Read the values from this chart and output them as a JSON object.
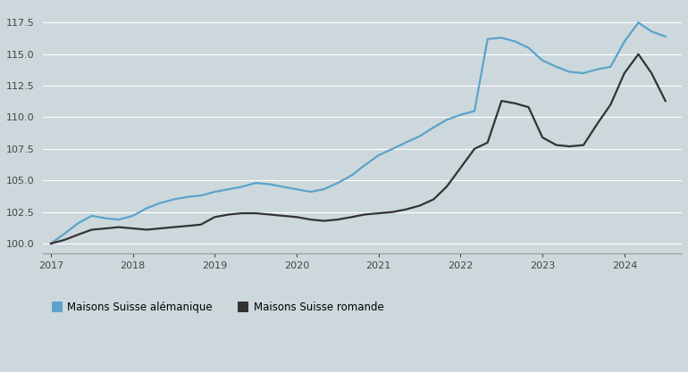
{
  "background_color": "#cdd8dc",
  "plot_bg_color": "#cdd8dc",
  "blue_color": "#5ba3cc",
  "black_color": "#333333",
  "ylim": [
    99.2,
    118.8
  ],
  "yticks": [
    100.0,
    102.5,
    105.0,
    107.5,
    110.0,
    112.5,
    115.0,
    117.5
  ],
  "xticks": [
    2017,
    2018,
    2019,
    2020,
    2021,
    2022,
    2023,
    2024
  ],
  "legend_blue": "Maisons Suisse alémanique",
  "legend_black": "Maisons Suisse romande",
  "blue_x": [
    2017.0,
    2017.17,
    2017.33,
    2017.5,
    2017.67,
    2017.83,
    2018.0,
    2018.17,
    2018.33,
    2018.5,
    2018.67,
    2018.83,
    2019.0,
    2019.17,
    2019.33,
    2019.5,
    2019.67,
    2019.83,
    2020.0,
    2020.17,
    2020.33,
    2020.5,
    2020.67,
    2020.83,
    2021.0,
    2021.17,
    2021.33,
    2021.5,
    2021.67,
    2021.83,
    2022.0,
    2022.17,
    2022.33,
    2022.5,
    2022.67,
    2022.83,
    2023.0,
    2023.17,
    2023.33,
    2023.5,
    2023.67,
    2023.83,
    2024.0,
    2024.17,
    2024.33,
    2024.5
  ],
  "blue_y": [
    100.0,
    100.8,
    101.6,
    102.2,
    102.0,
    101.9,
    102.2,
    102.8,
    103.2,
    103.5,
    103.7,
    103.8,
    104.1,
    104.3,
    104.5,
    104.8,
    104.7,
    104.5,
    104.3,
    104.1,
    104.3,
    104.8,
    105.4,
    106.2,
    107.0,
    107.5,
    108.0,
    108.5,
    109.2,
    109.8,
    110.2,
    110.5,
    116.2,
    116.3,
    116.0,
    115.5,
    114.5,
    114.0,
    113.6,
    113.5,
    113.8,
    114.0,
    116.0,
    117.5,
    116.8,
    116.4
  ],
  "black_x": [
    2017.0,
    2017.17,
    2017.33,
    2017.5,
    2017.67,
    2017.83,
    2018.0,
    2018.17,
    2018.33,
    2018.5,
    2018.67,
    2018.83,
    2019.0,
    2019.17,
    2019.33,
    2019.5,
    2019.67,
    2019.83,
    2020.0,
    2020.17,
    2020.33,
    2020.5,
    2020.67,
    2020.83,
    2021.0,
    2021.17,
    2021.33,
    2021.5,
    2021.67,
    2021.83,
    2022.0,
    2022.17,
    2022.33,
    2022.5,
    2022.67,
    2022.83,
    2023.0,
    2023.17,
    2023.33,
    2023.5,
    2023.67,
    2023.83,
    2024.0,
    2024.17,
    2024.33,
    2024.5
  ],
  "black_y": [
    100.0,
    100.3,
    100.7,
    101.1,
    101.2,
    101.3,
    101.2,
    101.1,
    101.2,
    101.3,
    101.4,
    101.5,
    102.1,
    102.3,
    102.4,
    102.4,
    102.3,
    102.2,
    102.1,
    101.9,
    101.8,
    101.9,
    102.1,
    102.3,
    102.4,
    102.5,
    102.7,
    103.0,
    103.5,
    104.5,
    106.0,
    107.5,
    108.0,
    111.3,
    111.1,
    110.8,
    108.4,
    107.8,
    107.7,
    107.8,
    109.5,
    111.0,
    113.5,
    115.0,
    113.5,
    111.3
  ]
}
